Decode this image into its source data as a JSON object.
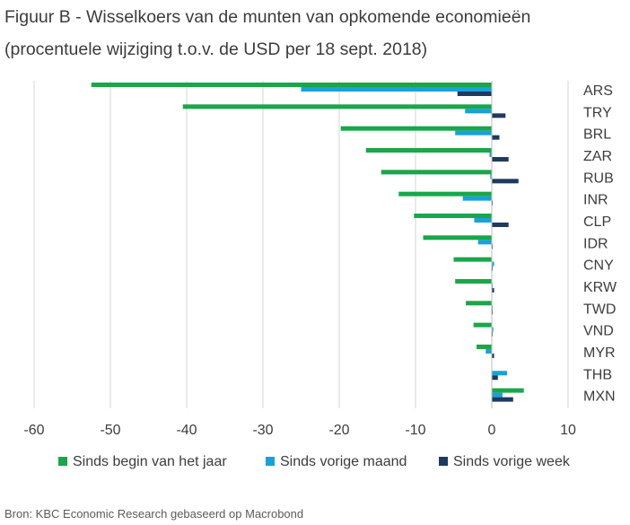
{
  "chart_data": {
    "type": "bar",
    "orientation": "horizontal",
    "title": "Figuur B - Wisselkoers van de munten van opkomende economieën",
    "subtitle": "(procentuele wijziging t.o.v. de USD per 18 sept. 2018)",
    "source": "Bron: KBC Economic Research gebaseerd op Macrobond",
    "categories": [
      "ARS",
      "TRY",
      "BRL",
      "ZAR",
      "RUB",
      "INR",
      "CLP",
      "IDR",
      "CNY",
      "KRW",
      "TWD",
      "VND",
      "MYR",
      "THB",
      "MXN"
    ],
    "series": [
      {
        "name": "Sinds begin van het jaar",
        "color": "#1aa64a",
        "values": [
          -52.5,
          -40.5,
          -19.8,
          -16.5,
          -14.5,
          -12.2,
          -10.2,
          -9.0,
          -5.0,
          -4.8,
          -3.4,
          -2.4,
          -2.0,
          0.0,
          4.2
        ]
      },
      {
        "name": "Sinds vorige maand",
        "color": "#19a1d8",
        "values": [
          -25.0,
          -3.5,
          -4.8,
          -0.3,
          -0.2,
          -3.8,
          -2.3,
          -1.8,
          0.3,
          0.1,
          0.1,
          0.2,
          -0.8,
          2.0,
          1.4
        ]
      },
      {
        "name": "Sinds vorige week",
        "color": "#1e3a5f",
        "values": [
          -4.5,
          1.8,
          1.0,
          2.2,
          3.5,
          0.1,
          2.2,
          0.1,
          0.1,
          0.3,
          0.1,
          0.1,
          0.3,
          0.8,
          2.8
        ]
      }
    ],
    "xlim": [
      -60,
      10
    ],
    "xticks": [
      -60,
      -50,
      -40,
      -30,
      -20,
      -10,
      0,
      10
    ],
    "grid": "vertical",
    "legend_position": "bottom",
    "category_labels_position": "right"
  }
}
